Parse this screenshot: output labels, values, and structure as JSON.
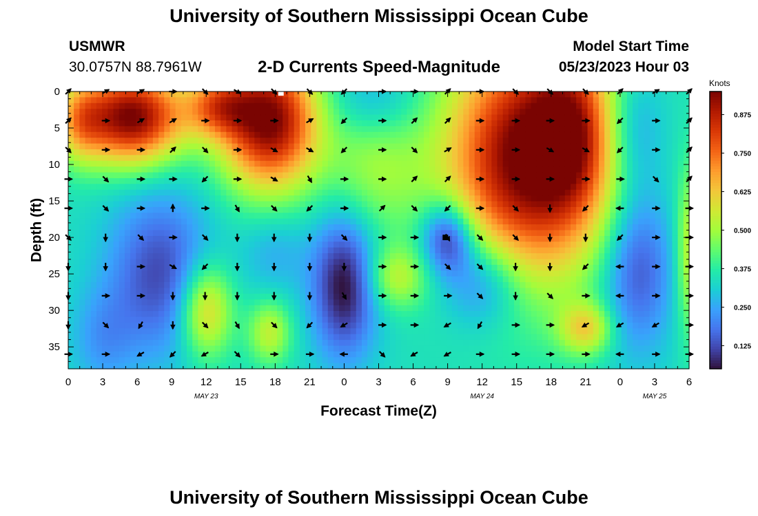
{
  "header": {
    "title": "University of Southern Mississippi Ocean Cube",
    "station": "USMWR",
    "coords": "30.0757N  88.7961W",
    "subtitle": "2-D Currents Speed-Magnitude",
    "model_label": "Model Start Time",
    "model_date": "05/23/2023 Hour 03",
    "footer_title": "University of Southern Mississippi Ocean Cube"
  },
  "colors": {
    "scale": [
      "#30123b",
      "#4145ab",
      "#4675ed",
      "#39a2fc",
      "#1bcfd4",
      "#24eca6",
      "#61fc6c",
      "#a4fc3b",
      "#d1e834",
      "#f3c63a",
      "#fe9b2d",
      "#f36315",
      "#d93806",
      "#b11901",
      "#7a0402"
    ]
  },
  "chart_data": {
    "type": "heatmap",
    "xlabel": "Forecast Time(Z)",
    "ylabel": "Depth (ft)",
    "x_range_hours": [
      0,
      54
    ],
    "ylim": [
      0,
      38
    ],
    "x_ticks": [
      {
        "hour": 0,
        "label": "0"
      },
      {
        "hour": 3,
        "label": "3"
      },
      {
        "hour": 6,
        "label": "6"
      },
      {
        "hour": 9,
        "label": "9"
      },
      {
        "hour": 12,
        "label": "12"
      },
      {
        "hour": 15,
        "label": "15"
      },
      {
        "hour": 18,
        "label": "18"
      },
      {
        "hour": 21,
        "label": "21"
      },
      {
        "hour": 24,
        "label": "0"
      },
      {
        "hour": 27,
        "label": "3"
      },
      {
        "hour": 30,
        "label": "6"
      },
      {
        "hour": 33,
        "label": "9"
      },
      {
        "hour": 36,
        "label": "12"
      },
      {
        "hour": 39,
        "label": "15"
      },
      {
        "hour": 42,
        "label": "18"
      },
      {
        "hour": 45,
        "label": "21"
      },
      {
        "hour": 48,
        "label": "0"
      },
      {
        "hour": 51,
        "label": "3"
      },
      {
        "hour": 54,
        "label": "6"
      }
    ],
    "date_labels": [
      {
        "hour": 12,
        "label": "MAY 23"
      },
      {
        "hour": 36,
        "label": "MAY 24"
      },
      {
        "hour": 51,
        "label": "MAY 25"
      }
    ],
    "y_ticks": [
      0,
      5,
      10,
      15,
      20,
      25,
      30,
      35
    ],
    "colorbar": {
      "unit": "Knots",
      "min": 0.05,
      "max": 0.95,
      "ticks": [
        {
          "value": 0.875,
          "label": "0.875"
        },
        {
          "value": 0.75,
          "label": "0.750"
        },
        {
          "value": 0.625,
          "label": "0.625"
        },
        {
          "value": 0.5,
          "label": "0.500"
        },
        {
          "value": 0.375,
          "label": "0.375"
        },
        {
          "value": 0.25,
          "label": "0.250"
        },
        {
          "value": 0.125,
          "label": "0.125"
        }
      ]
    },
    "speed_field": {
      "base": 0.34,
      "features": [
        {
          "hour": 5.5,
          "depth": 3.5,
          "sx": 3.2,
          "sy": 4.5,
          "amp": 0.62
        },
        {
          "hour": 1.0,
          "depth": 4.0,
          "sx": 1.5,
          "sy": 4.0,
          "amp": 0.22
        },
        {
          "hour": 17.5,
          "depth": 4.0,
          "sx": 3.0,
          "sy": 6.5,
          "amp": 0.62
        },
        {
          "hour": 13.0,
          "depth": 2.0,
          "sx": 2.0,
          "sy": 3.0,
          "amp": 0.3
        },
        {
          "hour": 40.0,
          "depth": 9.0,
          "sx": 5.0,
          "sy": 11.5,
          "amp": 0.64
        },
        {
          "hour": 44.0,
          "depth": 5.0,
          "sx": 2.5,
          "sy": 8.0,
          "amp": 0.25
        },
        {
          "hour": 26.5,
          "depth": 10.0,
          "sx": 3.0,
          "sy": 7.0,
          "amp": 0.15
        },
        {
          "hour": 12.0,
          "depth": 30.0,
          "sx": 1.6,
          "sy": 4.5,
          "amp": 0.3
        },
        {
          "hour": 17.5,
          "depth": 33.0,
          "sx": 1.3,
          "sy": 3.0,
          "amp": 0.2
        },
        {
          "hour": 28.5,
          "depth": 25.5,
          "sx": 1.8,
          "sy": 3.0,
          "amp": 0.18
        },
        {
          "hour": 45.0,
          "depth": 32.5,
          "sx": 1.6,
          "sy": 2.5,
          "amp": 0.25
        },
        {
          "hour": 54.0,
          "depth": 22.0,
          "sx": 0.8,
          "sy": 8.0,
          "amp": 0.2
        },
        {
          "hour": 8.0,
          "depth": 25.0,
          "sx": 3.2,
          "sy": 8.0,
          "amp": -0.22
        },
        {
          "hour": 24.0,
          "depth": 26.5,
          "sx": 2.0,
          "sy": 7.0,
          "amp": -0.3
        },
        {
          "hour": 33.0,
          "depth": 20.0,
          "sx": 1.6,
          "sy": 3.5,
          "amp": -0.3
        },
        {
          "hour": 36.0,
          "depth": 26.0,
          "sx": 2.5,
          "sy": 4.5,
          "amp": -0.2
        },
        {
          "hour": 49.5,
          "depth": 24.0,
          "sx": 2.2,
          "sy": 8.0,
          "amp": -0.22
        },
        {
          "hour": 18.0,
          "depth": 22.0,
          "sx": 2.0,
          "sy": 4.0,
          "amp": -0.08
        },
        {
          "hour": 26.5,
          "depth": 1.5,
          "sx": 3.0,
          "sy": 4.0,
          "amp": -0.12
        },
        {
          "hour": 49.0,
          "depth": 5.0,
          "sx": 2.0,
          "sy": 6.0,
          "amp": -0.15
        },
        {
          "hour": 3.0,
          "depth": 34.0,
          "sx": 2.0,
          "sy": 5.0,
          "amp": -0.1
        }
      ]
    },
    "vector_grid": {
      "hours": [
        0,
        3.25,
        6.3,
        9.1,
        11.9,
        14.7,
        17.9,
        21.0,
        24.0,
        27.3,
        30.1,
        33.0,
        35.8,
        38.9,
        41.9,
        45.0,
        48.0,
        51.1,
        54.0
      ],
      "depths": [
        0,
        4,
        8,
        12,
        16,
        20,
        24,
        28,
        32,
        36
      ],
      "directions_deg": [
        [
          -45,
          -30,
          -30,
          0,
          45,
          30,
          45,
          45,
          135,
          0,
          0,
          -45,
          0,
          45,
          45,
          45,
          -45,
          -30,
          -45
        ],
        [
          -45,
          0,
          -30,
          -30,
          0,
          0,
          0,
          -30,
          135,
          0,
          -45,
          -45,
          0,
          0,
          0,
          0,
          135,
          0,
          -45
        ],
        [
          45,
          0,
          0,
          -45,
          45,
          0,
          30,
          30,
          135,
          0,
          45,
          -30,
          0,
          0,
          30,
          30,
          135,
          0,
          -45
        ],
        [
          0,
          45,
          0,
          0,
          135,
          0,
          30,
          60,
          0,
          0,
          -45,
          -45,
          0,
          0,
          0,
          0,
          0,
          45,
          -45
        ],
        [
          0,
          45,
          0,
          -90,
          0,
          60,
          45,
          135,
          0,
          -45,
          45,
          135,
          0,
          45,
          90,
          135,
          180,
          0,
          0
        ],
        [
          45,
          90,
          45,
          0,
          45,
          90,
          90,
          90,
          45,
          0,
          0,
          60,
          45,
          45,
          90,
          90,
          135,
          0,
          0
        ],
        [
          90,
          90,
          0,
          30,
          135,
          90,
          90,
          90,
          90,
          0,
          0,
          45,
          45,
          90,
          90,
          135,
          180,
          0,
          0
        ],
        [
          90,
          0,
          0,
          90,
          90,
          90,
          90,
          90,
          60,
          0,
          0,
          0,
          45,
          90,
          45,
          0,
          180,
          0,
          0
        ],
        [
          90,
          45,
          120,
          90,
          45,
          60,
          45,
          135,
          150,
          0,
          0,
          150,
          120,
          0,
          0,
          150,
          150,
          150,
          0
        ],
        [
          0,
          0,
          150,
          135,
          150,
          45,
          0,
          0,
          180,
          45,
          150,
          150,
          0,
          0,
          0,
          0,
          180,
          0,
          0
        ]
      ]
    },
    "markers": [
      {
        "hour": 18.5,
        "depth": 0.2,
        "color": "#ffffff"
      },
      {
        "hour": 32.8,
        "depth": 20.0,
        "color": "#000000"
      }
    ]
  }
}
